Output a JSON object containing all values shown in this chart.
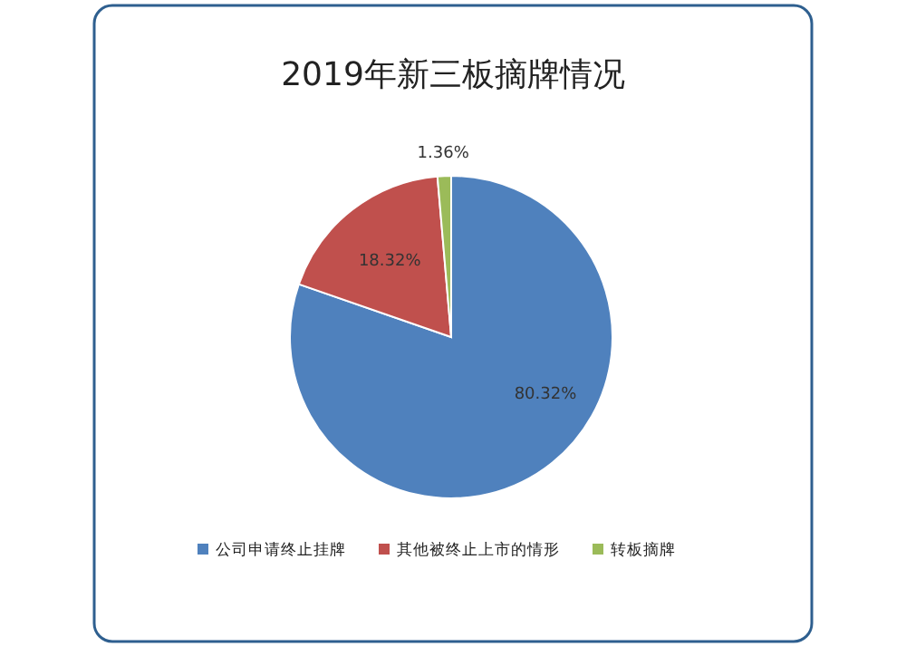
{
  "chart_data": {
    "type": "pie",
    "title": "2019年新三板摘牌情况",
    "categories": [
      "公司申请终止挂牌",
      "其他被终止上市的情形",
      "转板摘牌"
    ],
    "values": [
      80.32,
      18.32,
      1.36
    ],
    "colors": [
      "#4f81bd",
      "#c0504d",
      "#9bbb59"
    ],
    "value_labels": [
      "80.32%",
      "18.32%",
      "1.36%"
    ],
    "legend": "bottom"
  }
}
